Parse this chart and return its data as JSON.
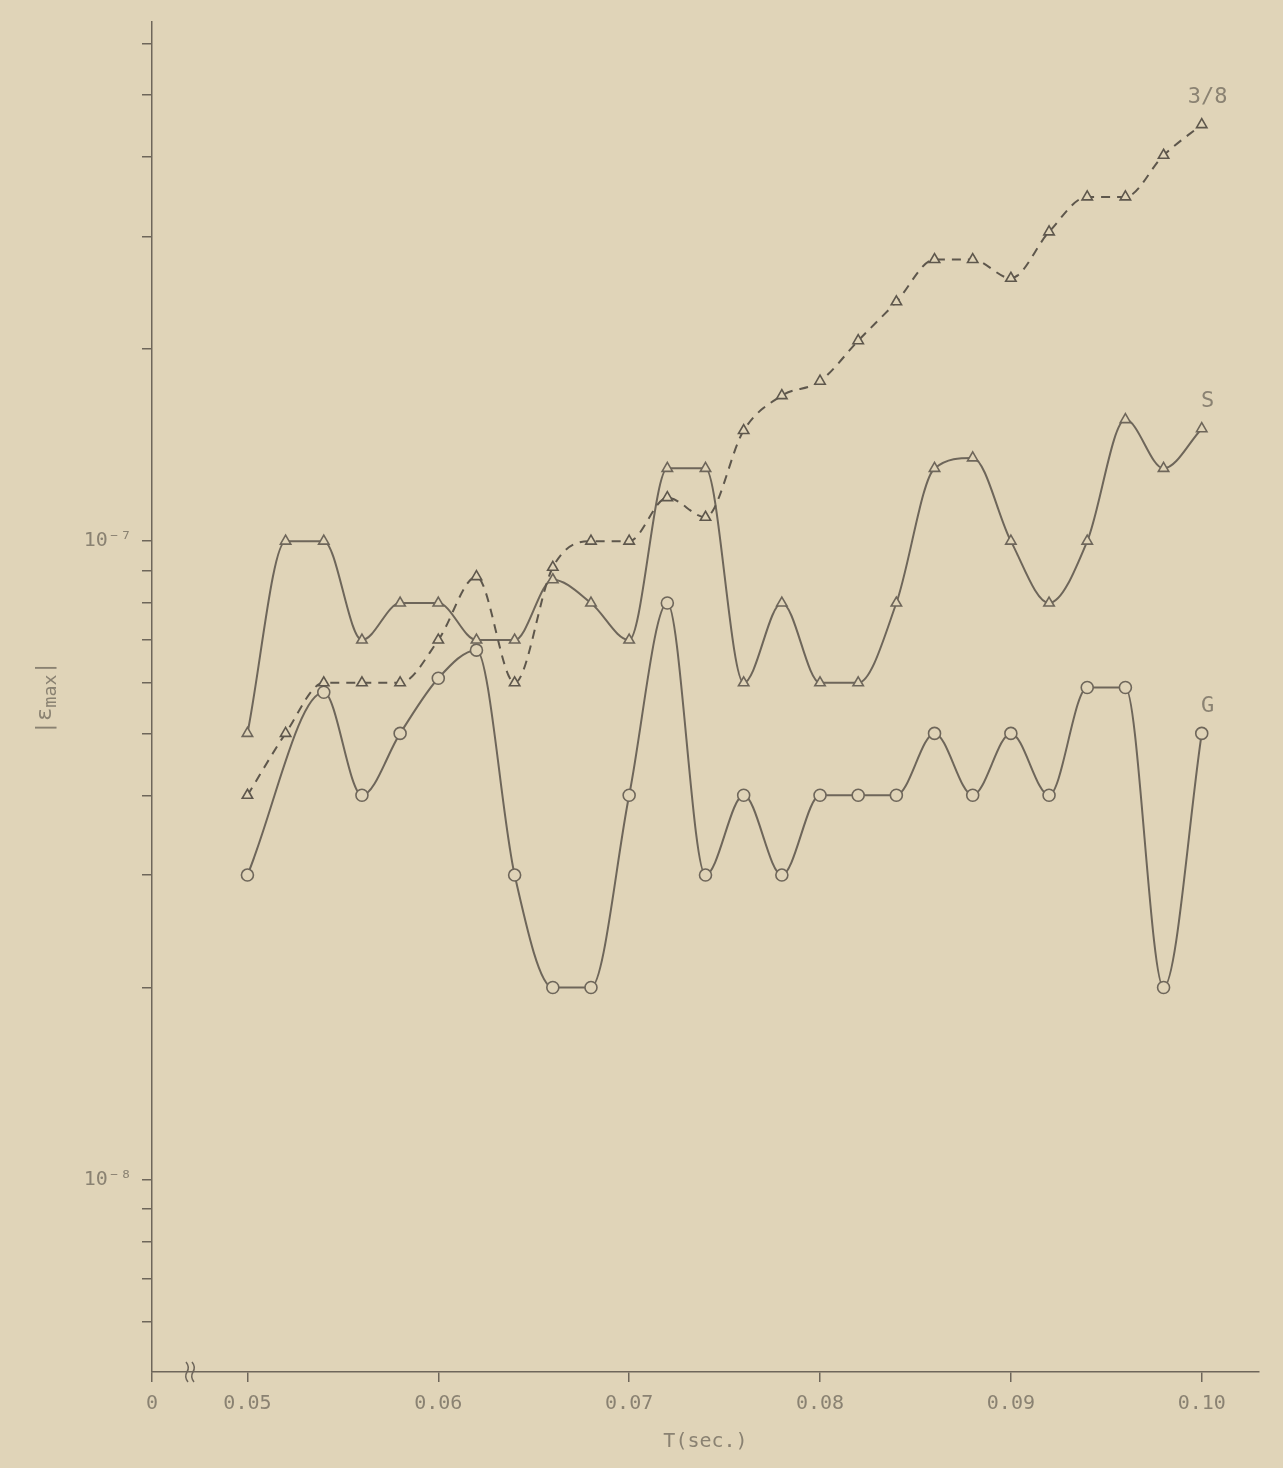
{
  "chart_data": {
    "type": "line",
    "xlabel": "T(sec.)",
    "ylabel": "|ε$_{max}$|",
    "log": "y",
    "grid": false,
    "legend": false,
    "xlim": [
      0.045,
      0.103
    ],
    "xticks": [
      {
        "value": 0.045,
        "label": "0"
      },
      0.05,
      0.06,
      0.07,
      0.08,
      0.09,
      {
        "value": 0.1,
        "label": "0.10"
      }
    ],
    "ylim": [
      5e-09,
      6.5e-07
    ],
    "yticks": [
      {
        "value": 6e-09,
        "label": null
      },
      {
        "value": 7e-09,
        "label": null
      },
      {
        "value": 8e-09,
        "label": null
      },
      {
        "value": 9e-09,
        "label": null
      },
      {
        "value": 1e-08,
        "label": "10⁻⁸"
      },
      {
        "value": 2e-08,
        "label": null
      },
      {
        "value": 3e-08,
        "label": null
      },
      {
        "value": 4e-08,
        "label": null
      },
      {
        "value": 5e-08,
        "label": null
      },
      {
        "value": 6e-08,
        "label": null
      },
      {
        "value": 7e-08,
        "label": null
      },
      {
        "value": 8e-08,
        "label": null
      },
      {
        "value": 9e-08,
        "label": null
      },
      {
        "value": 1e-07,
        "label": "10⁻⁷"
      },
      {
        "value": 2e-07,
        "label": null
      },
      {
        "value": 3e-07,
        "label": null
      },
      {
        "value": 4e-07,
        "label": null
      },
      {
        "value": 5e-07,
        "label": null
      },
      {
        "value": 6e-07,
        "label": null
      }
    ],
    "x": [
      0.05,
      0.052,
      0.054,
      0.056,
      0.058,
      0.06,
      0.062,
      0.064,
      0.066,
      0.068,
      0.07,
      0.072,
      0.074,
      0.076,
      0.078,
      0.08,
      0.082,
      0.084,
      0.086,
      0.088,
      0.09,
      0.092,
      0.094,
      0.096,
      0.098,
      0.1
    ],
    "series": [
      {
        "name": "3/8",
        "color": "#5e574c",
        "marker": "triangle",
        "line_style": "dashed",
        "values": [
          4e-08,
          5e-08,
          6e-08,
          6e-08,
          6e-08,
          7e-08,
          8.8e-08,
          6e-08,
          9.1e-08,
          1e-07,
          1e-07,
          1.17e-07,
          1.09e-07,
          1.49e-07,
          1.69e-07,
          1.78e-07,
          2.06e-07,
          2.37e-07,
          2.76e-07,
          2.76e-07,
          2.58e-07,
          3.05e-07,
          3.46e-07,
          3.46e-07,
          4.02e-07,
          4.49e-07
        ]
      },
      {
        "name": "S",
        "color": "#6e665a",
        "marker": "triangle",
        "line_style": "solid",
        "values": [
          5e-08,
          1e-07,
          1e-07,
          7e-08,
          8e-08,
          8e-08,
          7e-08,
          7e-08,
          8.7e-08,
          8e-08,
          7e-08,
          1.3e-07,
          1.3e-07,
          6e-08,
          8e-08,
          6e-08,
          6e-08,
          8e-08,
          1.3e-07,
          1.35e-07,
          1e-07,
          8e-08,
          1e-07,
          1.55e-07,
          1.3e-07,
          1.5e-07
        ]
      },
      {
        "name": "G",
        "color": "#6e665a",
        "marker": "circle",
        "line_style": "solid",
        "x": [
          0.05,
          0.054,
          0.056,
          0.058,
          0.06,
          0.062,
          0.064,
          0.066,
          0.068,
          0.07,
          0.072,
          0.074,
          0.076,
          0.078,
          0.08,
          0.082,
          0.084,
          0.086,
          0.088,
          0.09,
          0.092,
          0.094,
          0.096,
          0.098,
          0.1
        ],
        "values": [
          3e-08,
          5.8e-08,
          4e-08,
          5e-08,
          6.1e-08,
          6.75e-08,
          3e-08,
          2e-08,
          2e-08,
          4e-08,
          8e-08,
          3e-08,
          4e-08,
          3e-08,
          4e-08,
          4e-08,
          4e-08,
          5e-08,
          4e-08,
          5e-08,
          4e-08,
          5.9e-08,
          5.9e-08,
          2e-08,
          5e-08
        ]
      }
    ]
  }
}
